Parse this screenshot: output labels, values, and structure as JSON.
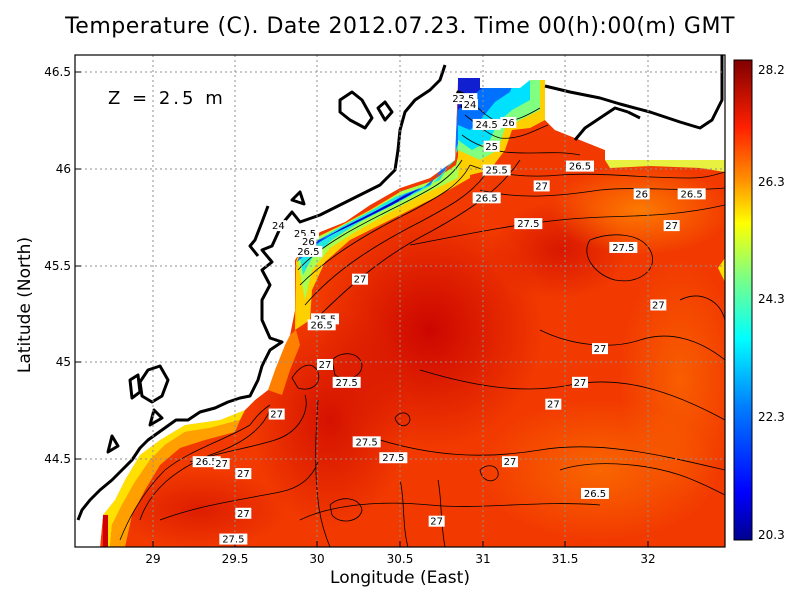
{
  "title": "Temperature (C). Date 2012.07.23. Time 00(h):00(m) GMT",
  "depth_label": "Z = 2.5 m",
  "xlabel": "Longitude (East)",
  "ylabel": "Latitude (North)",
  "chart_data": {
    "type": "heatmap",
    "title": "Temperature (C). Date 2012.07.23. Time 00(h):00(m) GMT",
    "xlabel": "Longitude (East)",
    "ylabel": "Latitude (North)",
    "xlim": [
      28.55,
      32.45
    ],
    "ylim": [
      44.07,
      46.55
    ],
    "x_ticks": [
      "29",
      "29.5",
      "30",
      "30.5",
      "31",
      "31.5",
      "32"
    ],
    "y_ticks": [
      "44.5",
      "45",
      "45.5",
      "46",
      "46.5"
    ],
    "grid": "dotted",
    "colorbar": {
      "min": 20.3,
      "max": 28.2,
      "labels": [
        "28.2",
        "26.3",
        "24.3",
        "22.3",
        "20.3"
      ],
      "colors": [
        "#00008f",
        "#0000ff",
        "#0080ff",
        "#00ffff",
        "#80ff80",
        "#ffff00",
        "#ff8000",
        "#ff0000",
        "#800000"
      ]
    },
    "contour_labels": [
      {
        "text": "23.5",
        "x": 30.88,
        "y": 46.33
      },
      {
        "text": "24",
        "x": 30.92,
        "y": 46.3
      },
      {
        "text": "24.5",
        "x": 31.02,
        "y": 46.2
      },
      {
        "text": "26",
        "x": 31.15,
        "y": 46.21
      },
      {
        "text": "25",
        "x": 31.05,
        "y": 46.09
      },
      {
        "text": "25.5",
        "x": 31.08,
        "y": 45.97
      },
      {
        "text": "26.5",
        "x": 31.58,
        "y": 45.99
      },
      {
        "text": "27",
        "x": 31.35,
        "y": 45.89
      },
      {
        "text": "26",
        "x": 31.95,
        "y": 45.85
      },
      {
        "text": "26.5",
        "x": 32.25,
        "y": 45.85
      },
      {
        "text": "26.5",
        "x": 31.02,
        "y": 45.83
      },
      {
        "text": "27.5",
        "x": 31.27,
        "y": 45.7
      },
      {
        "text": "27",
        "x": 32.13,
        "y": 45.69
      },
      {
        "text": "24",
        "x": 29.77,
        "y": 45.69
      },
      {
        "text": "25.5",
        "x": 29.93,
        "y": 45.65
      },
      {
        "text": "26",
        "x": 29.95,
        "y": 45.61
      },
      {
        "text": "26.5",
        "x": 29.95,
        "y": 45.56
      },
      {
        "text": "27.5",
        "x": 31.84,
        "y": 45.58
      },
      {
        "text": "27",
        "x": 30.26,
        "y": 45.42
      },
      {
        "text": "27",
        "x": 32.05,
        "y": 45.29
      },
      {
        "text": "25.5",
        "x": 30.05,
        "y": 45.22
      },
      {
        "text": "26.5",
        "x": 30.03,
        "y": 45.19
      },
      {
        "text": "27",
        "x": 31.7,
        "y": 45.07
      },
      {
        "text": "27",
        "x": 30.05,
        "y": 44.99
      },
      {
        "text": "27.5",
        "x": 30.18,
        "y": 44.9
      },
      {
        "text": "27",
        "x": 31.58,
        "y": 44.9
      },
      {
        "text": "27",
        "x": 31.42,
        "y": 44.79
      },
      {
        "text": "27",
        "x": 29.76,
        "y": 44.74
      },
      {
        "text": "27.5",
        "x": 30.3,
        "y": 44.6
      },
      {
        "text": "27.5",
        "x": 30.46,
        "y": 44.52
      },
      {
        "text": "26.5",
        "x": 29.34,
        "y": 44.5
      },
      {
        "text": "27",
        "x": 29.43,
        "y": 44.49
      },
      {
        "text": "27",
        "x": 31.16,
        "y": 44.5
      },
      {
        "text": "27",
        "x": 29.56,
        "y": 44.44
      },
      {
        "text": "26.5",
        "x": 31.67,
        "y": 44.34
      },
      {
        "text": "27",
        "x": 29.56,
        "y": 44.24
      },
      {
        "text": "27",
        "x": 30.72,
        "y": 44.2
      },
      {
        "text": "27.5",
        "x": 29.5,
        "y": 44.11
      }
    ]
  }
}
